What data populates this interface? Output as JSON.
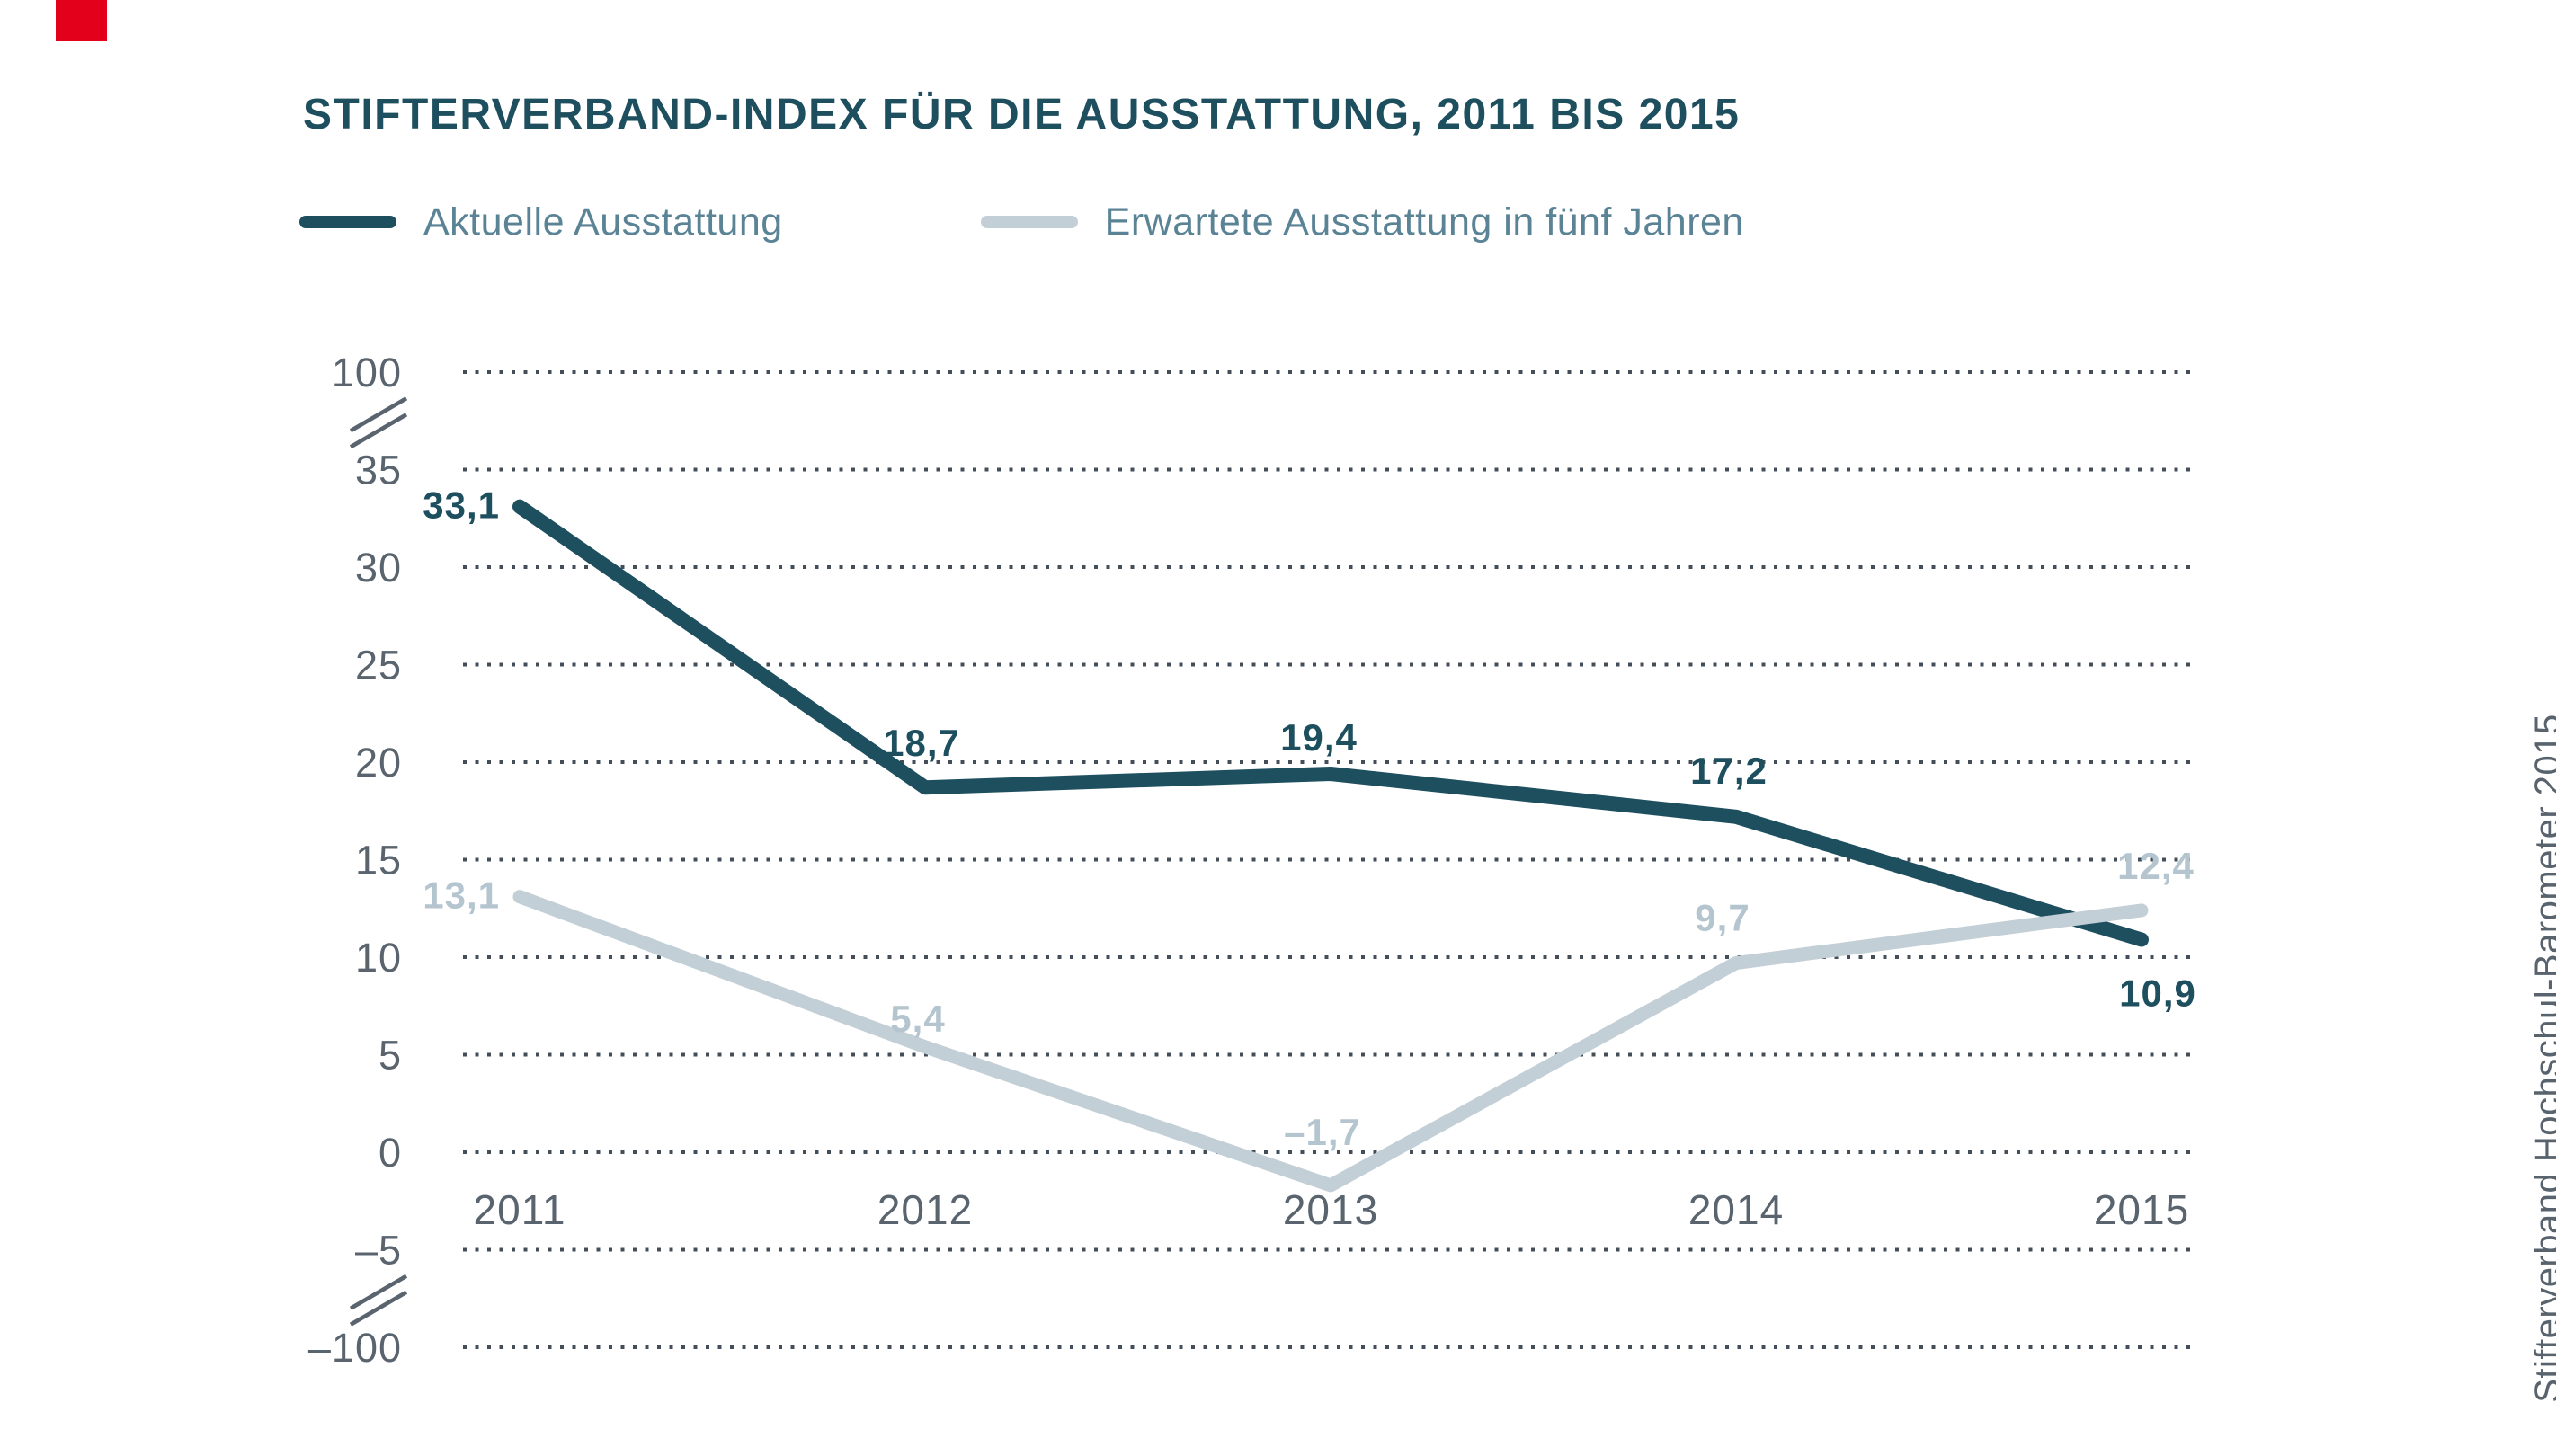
{
  "logo": {
    "color": "#e2001a",
    "name": "stifterverband-red-square"
  },
  "header": {
    "title": "STIFTERVERBAND-INDEX FÜR DIE AUSSTATTUNG, 2011 BIS 2015"
  },
  "legend": {
    "items": [
      {
        "label": "Aktuelle Ausstattung",
        "color": "#1d4f5f"
      },
      {
        "label": "Erwartete Ausstattung in fünf Jahren",
        "color": "#c3cfd6"
      }
    ]
  },
  "source_caption": "Stifterverband Hochschul-Barometer 2015",
  "chart_data": {
    "type": "line",
    "title": "Stifterverband-Index für die Ausstattung, 2011 bis 2015",
    "categories": [
      "2011",
      "2012",
      "2013",
      "2014",
      "2015"
    ],
    "series": [
      {
        "name": "Aktuelle Ausstattung",
        "color": "#1d4f5f",
        "values": [
          33.1,
          18.7,
          19.4,
          17.2,
          10.9
        ],
        "labels": [
          "33,1",
          "18,7",
          "19,4",
          "17,2",
          "10,9"
        ]
      },
      {
        "name": "Erwartete Ausstattung in fünf Jahren",
        "color": "#c3cfd6",
        "values": [
          13.1,
          5.4,
          -1.7,
          9.7,
          12.4
        ],
        "labels": [
          "13,1",
          "5,4",
          "–1,7",
          "9,7",
          "12,4"
        ]
      }
    ],
    "yticks": [
      {
        "value": 100,
        "label": "100"
      },
      {
        "value": 35,
        "label": "35"
      },
      {
        "value": 30,
        "label": "30"
      },
      {
        "value": 25,
        "label": "25"
      },
      {
        "value": 20,
        "label": "20"
      },
      {
        "value": 15,
        "label": "15"
      },
      {
        "value": 10,
        "label": "10"
      },
      {
        "value": 5,
        "label": "5"
      },
      {
        "value": 0,
        "label": "0"
      },
      {
        "value": -5,
        "label": "–5"
      },
      {
        "value": -100,
        "label": "–100"
      }
    ],
    "axis_break": true,
    "grid": "dotted horizontal lines",
    "legend_position": "top-left",
    "ylim": [
      -100,
      100
    ],
    "xlabel": "",
    "ylabel": "",
    "colors": {
      "axis_text": "#59646e",
      "gridline": "#434e58",
      "dark_series": "#1d4f5f",
      "light_series": "#c3cfd6",
      "light_label": "#b4c5cf"
    }
  }
}
